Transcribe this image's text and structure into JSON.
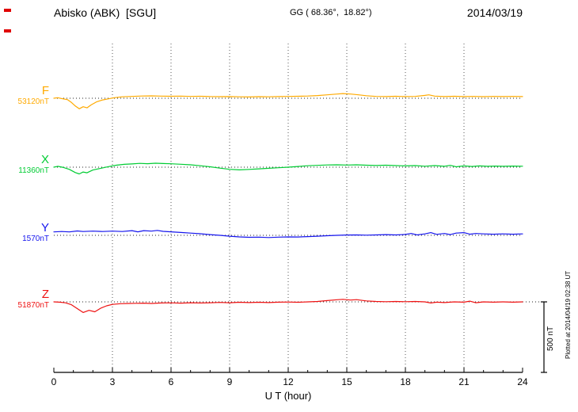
{
  "header": {
    "station": "Abisko (ABK)  [SGU]",
    "coords": "GG ( 68.36°,  18.82°)",
    "date": "2014/03/19"
  },
  "annotations": {
    "scale_label": "500 nT",
    "plotted_note": "Plotted at 2014/04/19 02:38 UT"
  },
  "chart_data": {
    "type": "line",
    "title": "Abisko (ABK) [SGU] magnetogram — 2014/03/19",
    "xlabel": "U T (hour)",
    "x_range": [
      0,
      24
    ],
    "x_ticks": [
      0,
      3,
      6,
      9,
      12,
      15,
      18,
      21,
      24
    ],
    "grid_hours": [
      3,
      6,
      9,
      12,
      15,
      18,
      21
    ],
    "scale_nT": 500,
    "units": "nT offset from component baseline",
    "legend_position": "left",
    "grid": "dotted-vertical",
    "series": [
      {
        "name": "F",
        "baseline_label": "53120nT",
        "color": "#FFAA00",
        "points": [
          [
            0,
            0
          ],
          [
            0.2,
            4
          ],
          [
            0.4,
            -2
          ],
          [
            0.7,
            -10
          ],
          [
            0.9,
            -30
          ],
          [
            1.1,
            -55
          ],
          [
            1.3,
            -75
          ],
          [
            1.5,
            -60
          ],
          [
            1.7,
            -68
          ],
          [
            1.9,
            -48
          ],
          [
            2.2,
            -25
          ],
          [
            2.5,
            -12
          ],
          [
            2.8,
            -4
          ],
          [
            3.1,
            4
          ],
          [
            3.5,
            10
          ],
          [
            4,
            13
          ],
          [
            4.5,
            16
          ],
          [
            5,
            17
          ],
          [
            5.5,
            15
          ],
          [
            6,
            14
          ],
          [
            6.5,
            15
          ],
          [
            7,
            13
          ],
          [
            7.5,
            14
          ],
          [
            8,
            12
          ],
          [
            8.5,
            11
          ],
          [
            9,
            12
          ],
          [
            9.5,
            10
          ],
          [
            10,
            9
          ],
          [
            10.5,
            11
          ],
          [
            11,
            10
          ],
          [
            11.5,
            12
          ],
          [
            12,
            13
          ],
          [
            12.5,
            14
          ],
          [
            13,
            16
          ],
          [
            13.5,
            19
          ],
          [
            14,
            24
          ],
          [
            14.5,
            30
          ],
          [
            14.8,
            33
          ],
          [
            15.2,
            30
          ],
          [
            15.6,
            24
          ],
          [
            16,
            18
          ],
          [
            16.5,
            13
          ],
          [
            17,
            12
          ],
          [
            17.5,
            14
          ],
          [
            18,
            12
          ],
          [
            18.5,
            13
          ],
          [
            19,
            20
          ],
          [
            19.2,
            24
          ],
          [
            19.5,
            15
          ],
          [
            20,
            12
          ],
          [
            20.5,
            14
          ],
          [
            21,
            12
          ],
          [
            21.5,
            13
          ],
          [
            22,
            11
          ],
          [
            22.5,
            13
          ],
          [
            23,
            12
          ],
          [
            23.5,
            13
          ],
          [
            24,
            12
          ]
        ]
      },
      {
        "name": "X",
        "baseline_label": "11360nT",
        "color": "#00CC33",
        "points": [
          [
            0,
            0
          ],
          [
            0.2,
            6
          ],
          [
            0.5,
            -2
          ],
          [
            0.8,
            -16
          ],
          [
            1.1,
            -38
          ],
          [
            1.3,
            -48
          ],
          [
            1.5,
            -34
          ],
          [
            1.7,
            -40
          ],
          [
            2,
            -20
          ],
          [
            2.4,
            -8
          ],
          [
            2.8,
            4
          ],
          [
            3.2,
            14
          ],
          [
            3.6,
            20
          ],
          [
            4,
            23
          ],
          [
            4.4,
            27
          ],
          [
            4.8,
            25
          ],
          [
            5.2,
            28
          ],
          [
            5.6,
            26
          ],
          [
            6,
            24
          ],
          [
            6.5,
            21
          ],
          [
            7,
            17
          ],
          [
            7.5,
            10
          ],
          [
            8,
            3
          ],
          [
            8.5,
            -7
          ],
          [
            9,
            -15
          ],
          [
            9.5,
            -19
          ],
          [
            10,
            -16
          ],
          [
            10.5,
            -12
          ],
          [
            11,
            -8
          ],
          [
            11.5,
            -4
          ],
          [
            12,
            0
          ],
          [
            12.5,
            5
          ],
          [
            13,
            10
          ],
          [
            13.5,
            13
          ],
          [
            14,
            16
          ],
          [
            14.5,
            17
          ],
          [
            15,
            15
          ],
          [
            15.5,
            17
          ],
          [
            16,
            14
          ],
          [
            16.5,
            12
          ],
          [
            17,
            14
          ],
          [
            17.5,
            11
          ],
          [
            18,
            9
          ],
          [
            18.5,
            11
          ],
          [
            19,
            7
          ],
          [
            19.5,
            11
          ],
          [
            20,
            6
          ],
          [
            20.3,
            13
          ],
          [
            20.6,
            3
          ],
          [
            21,
            9
          ],
          [
            21.4,
            5
          ],
          [
            21.8,
            9
          ],
          [
            22.2,
            6
          ],
          [
            22.6,
            8
          ],
          [
            23,
            6
          ],
          [
            23.5,
            8
          ],
          [
            24,
            7
          ]
        ]
      },
      {
        "name": "Y",
        "baseline_label": "1570nT",
        "color": "#1515EE",
        "points": [
          [
            0,
            24
          ],
          [
            0.4,
            27
          ],
          [
            0.8,
            24
          ],
          [
            1.2,
            31
          ],
          [
            1.5,
            27
          ],
          [
            2,
            30
          ],
          [
            2.5,
            27
          ],
          [
            3,
            30
          ],
          [
            3.5,
            27
          ],
          [
            4,
            33
          ],
          [
            4.3,
            25
          ],
          [
            4.6,
            33
          ],
          [
            5,
            30
          ],
          [
            5.3,
            35
          ],
          [
            5.6,
            28
          ],
          [
            6,
            25
          ],
          [
            6.5,
            20
          ],
          [
            7,
            16
          ],
          [
            7.5,
            11
          ],
          [
            8,
            5
          ],
          [
            8.5,
            0
          ],
          [
            9,
            -6
          ],
          [
            9.5,
            -11
          ],
          [
            10,
            -14
          ],
          [
            10.5,
            -13
          ],
          [
            11,
            -16
          ],
          [
            11.5,
            -13
          ],
          [
            12,
            -11
          ],
          [
            12.5,
            -12
          ],
          [
            13,
            -9
          ],
          [
            13.5,
            -6
          ],
          [
            14,
            -3
          ],
          [
            14.5,
            0
          ],
          [
            15,
            2
          ],
          [
            15.5,
            3
          ],
          [
            16,
            1
          ],
          [
            16.5,
            3
          ],
          [
            17,
            5
          ],
          [
            17.5,
            3
          ],
          [
            18,
            6
          ],
          [
            18.3,
            13
          ],
          [
            18.6,
            3
          ],
          [
            19,
            10
          ],
          [
            19.3,
            19
          ],
          [
            19.6,
            7
          ],
          [
            20,
            13
          ],
          [
            20.3,
            5
          ],
          [
            20.6,
            16
          ],
          [
            21,
            19
          ],
          [
            21.3,
            8
          ],
          [
            21.6,
            13
          ],
          [
            22,
            10
          ],
          [
            22.5,
            8
          ],
          [
            23,
            10
          ],
          [
            23.5,
            8
          ],
          [
            24,
            10
          ]
        ]
      },
      {
        "name": "Z",
        "baseline_label": "51870nT",
        "color": "#EE1111",
        "points": [
          [
            0,
            0
          ],
          [
            0.3,
            -2
          ],
          [
            0.6,
            -7
          ],
          [
            0.9,
            -20
          ],
          [
            1.2,
            -48
          ],
          [
            1.5,
            -75
          ],
          [
            1.8,
            -60
          ],
          [
            2.1,
            -70
          ],
          [
            2.4,
            -45
          ],
          [
            2.7,
            -28
          ],
          [
            3,
            -18
          ],
          [
            3.4,
            -13
          ],
          [
            3.8,
            -11
          ],
          [
            4.2,
            -10
          ],
          [
            4.6,
            -9
          ],
          [
            5,
            -11
          ],
          [
            5.5,
            -8
          ],
          [
            6,
            -7
          ],
          [
            6.5,
            -9
          ],
          [
            7,
            -6
          ],
          [
            7.5,
            -8
          ],
          [
            8,
            -6
          ],
          [
            8.5,
            -4
          ],
          [
            9,
            -6
          ],
          [
            9.5,
            -3
          ],
          [
            10,
            -5
          ],
          [
            10.5,
            -3
          ],
          [
            11,
            -5
          ],
          [
            11.5,
            -2
          ],
          [
            12,
            -1
          ],
          [
            12.5,
            -3
          ],
          [
            13,
            0
          ],
          [
            13.5,
            3
          ],
          [
            14,
            9
          ],
          [
            14.5,
            15
          ],
          [
            14.8,
            18
          ],
          [
            15.2,
            13
          ],
          [
            15.5,
            16
          ],
          [
            16,
            7
          ],
          [
            16.5,
            3
          ],
          [
            17,
            1
          ],
          [
            17.5,
            3
          ],
          [
            18,
            1
          ],
          [
            18.5,
            3
          ],
          [
            19,
            0
          ],
          [
            19.3,
            -8
          ],
          [
            19.6,
            -2
          ],
          [
            20,
            -5
          ],
          [
            20.5,
            0
          ],
          [
            21,
            -2
          ],
          [
            21.3,
            5
          ],
          [
            21.6,
            -6
          ],
          [
            22,
            0
          ],
          [
            22.5,
            -2
          ],
          [
            23,
            0
          ],
          [
            23.5,
            -2
          ],
          [
            24,
            0
          ]
        ]
      }
    ]
  }
}
